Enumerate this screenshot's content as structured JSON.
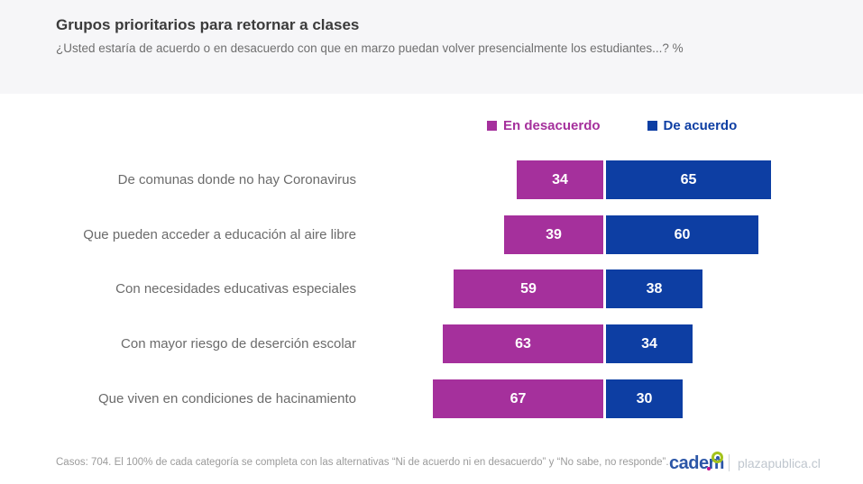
{
  "header": {
    "title": "Grupos prioritarios para retornar a clases",
    "subtitle": "¿Usted estaría de acuerdo o en desacuerdo con que en marzo puedan volver presencialmente los estudiantes...? %"
  },
  "colors": {
    "disagree": "#a5309c",
    "agree": "#0d3ea3",
    "header_bg": "#f6f6f8"
  },
  "chart_data": {
    "type": "bar",
    "orientation": "horizontal",
    "diverging": true,
    "categories": [
      "De comunas donde no hay Coronavirus",
      "Que pueden acceder a educación al aire libre",
      "Con necesidades educativas especiales",
      "Con mayor riesgo de deserción escolar",
      "Que viven en condiciones de hacinamiento"
    ],
    "series": [
      {
        "name": "En desacuerdo",
        "color": "#a5309c",
        "values": [
          34,
          39,
          59,
          63,
          67
        ]
      },
      {
        "name": "De acuerdo",
        "color": "#0d3ea3",
        "values": [
          65,
          60,
          38,
          34,
          30
        ]
      }
    ],
    "title": "Grupos prioritarios para retornar a clases",
    "xlabel": "",
    "ylabel": "",
    "xlim": [
      0,
      100
    ],
    "grid": false,
    "legend_position": "top",
    "value_labels": "inside, white, bold"
  },
  "footer": {
    "note": "Casos: 704. El 100% de cada categoría se completa con las alternativas “Ni de acuerdo ni en desacuerdo” y “No sabe, no responde”.",
    "brand": "cadem",
    "site": "plazapublica.cl"
  }
}
